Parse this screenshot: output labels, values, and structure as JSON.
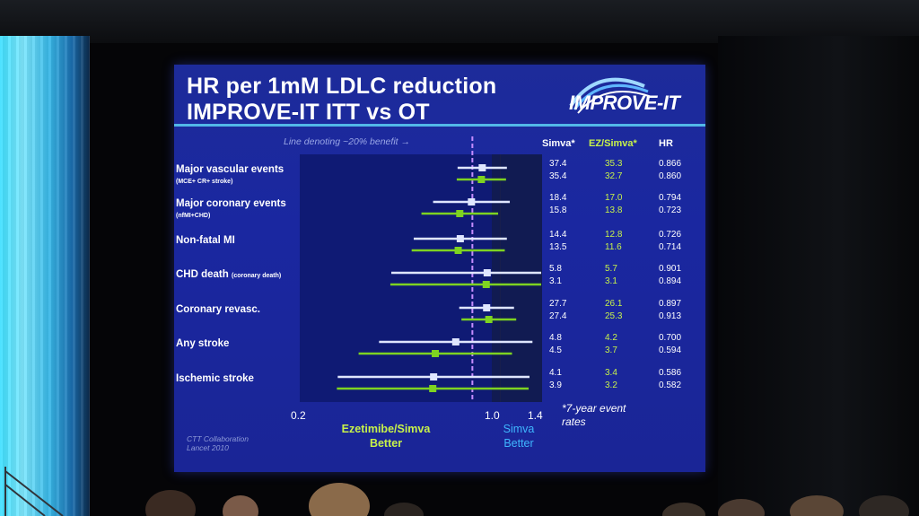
{
  "slide": {
    "title_line1": "HR per 1mM LDLC reduction",
    "title_line2_a": "IMPROVE-IT ITT vs ",
    "title_line2_b": "OT",
    "brand": "IMPROVE-IT",
    "line_note": "Line denoting ~20% benefit →",
    "col_simva": "Simva*",
    "col_ezsimva": "EZ/Simva*",
    "col_hr": "HR",
    "rows": [
      {
        "label": "Major vascular events",
        "small": "(MCE+ CR+ stroke)",
        "simva": [
          "37.4",
          "35.4"
        ],
        "ez": [
          "35.3",
          "32.7"
        ],
        "hr": [
          "0.866",
          "0.860"
        ]
      },
      {
        "label": "Major coronary events",
        "small": "(nfMI+CHD)",
        "simva": [
          "18.4",
          "15.8"
        ],
        "ez": [
          "17.0",
          "13.8"
        ],
        "hr": [
          "0.794",
          "0.723"
        ]
      },
      {
        "label": "Non-fatal MI",
        "small": "",
        "simva": [
          "14.4",
          "13.5"
        ],
        "ez": [
          "12.8",
          "11.6"
        ],
        "hr": [
          "0.726",
          "0.714"
        ]
      },
      {
        "label": "CHD death",
        "small": "(coronary death)",
        "simva": [
          "5.8",
          "3.1"
        ],
        "ez": [
          "5.7",
          "3.1"
        ],
        "hr": [
          "0.901",
          "0.894"
        ]
      },
      {
        "label": "Coronary revasc.",
        "small": "",
        "simva": [
          "27.7",
          "27.4"
        ],
        "ez": [
          "26.1",
          "25.3"
        ],
        "hr": [
          "0.897",
          "0.913"
        ]
      },
      {
        "label": "Any stroke",
        "small": "",
        "simva": [
          "4.8",
          "4.5"
        ],
        "ez": [
          "4.2",
          "3.7"
        ],
        "hr": [
          "0.700",
          "0.594"
        ]
      },
      {
        "label": "Ischemic stroke",
        "small": "",
        "simva": [
          "4.1",
          "3.9"
        ],
        "ez": [
          "3.4",
          "3.2"
        ],
        "hr": [
          "0.586",
          "0.582"
        ]
      }
    ],
    "tick_02": "0.2",
    "tick_10": "1.0",
    "tick_14": "1.4",
    "footnote": "*7-year event rates",
    "better_left": "Ezetimibe/Simva Better",
    "better_right": "Simva Better",
    "cite": "CTT Collaboration Lancet 2010",
    "colors": {
      "itt": "#dfe6ff",
      "ot": "#7ed321",
      "dash": "#c58cff",
      "bg": "#1a27a0"
    }
  }
}
